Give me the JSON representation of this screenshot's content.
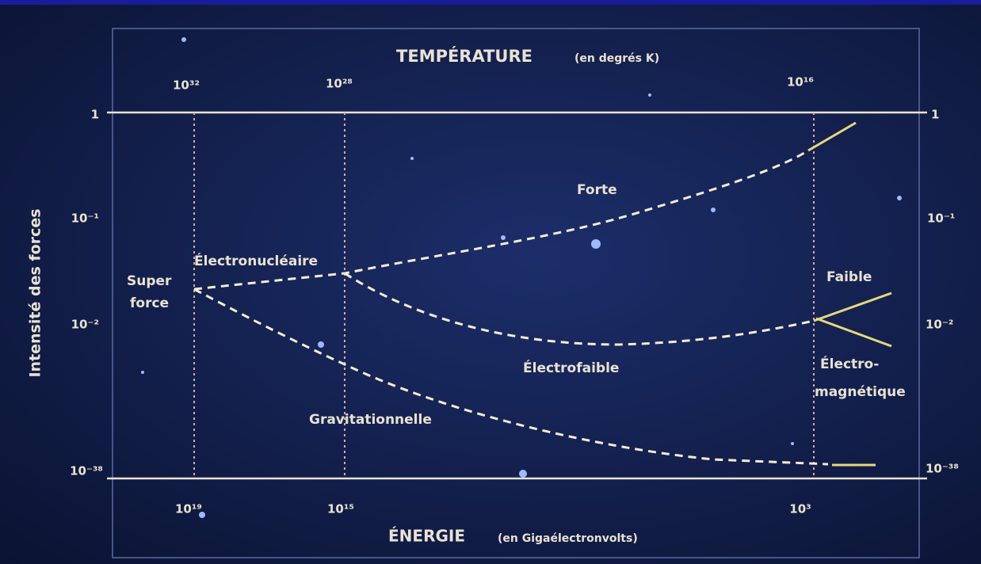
{
  "top_axis": {
    "title": "TEMPÉRATURE",
    "unit": "(en degrés K)",
    "ticks": [
      "10³²",
      "10²⁸",
      "10¹⁶"
    ]
  },
  "bottom_axis": {
    "title": "ÉNERGIE",
    "unit": "(en Gigaélectronvolts)",
    "ticks": [
      "10¹⁹",
      "10¹⁵",
      "10³"
    ]
  },
  "left_axis": {
    "title": "Intensité des forces",
    "ticks": [
      "1",
      "10⁻¹",
      "10⁻²",
      "10⁻³⁸"
    ]
  },
  "right_axis": {
    "ticks": [
      "1",
      "10⁻¹",
      "10⁻²",
      "10⁻³⁸"
    ]
  },
  "labels": {
    "super": "Super",
    "force": "force",
    "electronucleaire": "Électronucléaire",
    "forte": "Forte",
    "faible": "Faible",
    "electrofaible": "Électrofaible",
    "electro": "Électro-",
    "magnetique": "magnétique",
    "gravitationnelle": "Gravitationnelle"
  }
}
